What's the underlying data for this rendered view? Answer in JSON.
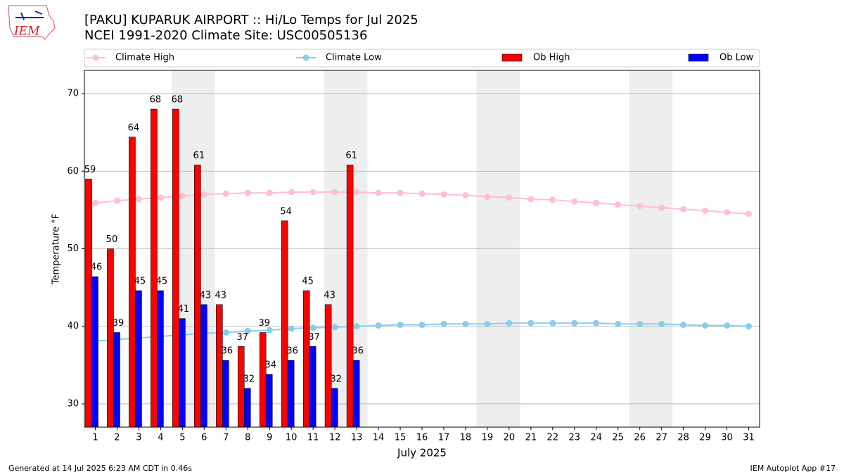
{
  "logo_text": "IEM",
  "chart_data": {
    "type": "bar",
    "title": "[PAKU] KUPARUK AIRPORT :: Hi/Lo Temps for Jul 2025",
    "subtitle": "NCEI 1991-2020 Climate Site: USC00505136",
    "y_label": "Temperature °F",
    "x_label": "July 2025",
    "footer_left": "Generated at 14 Jul 2025 6:23 AM CDT in 0.46s",
    "footer_right": "IEM Autoplot App #17",
    "categories": [
      "1",
      "2",
      "3",
      "4",
      "5",
      "6",
      "7",
      "8",
      "9",
      "10",
      "11",
      "12",
      "13",
      "14",
      "15",
      "16",
      "17",
      "18",
      "19",
      "20",
      "21",
      "22",
      "23",
      "24",
      "25",
      "26",
      "27",
      "28",
      "29",
      "30",
      "31"
    ],
    "ylim": [
      27,
      73
    ],
    "yticks": [
      30,
      40,
      50,
      60,
      70
    ],
    "grid": true,
    "series": [
      {
        "name": "Climate High",
        "type": "line",
        "color": "#ffc0cb",
        "values": [
          55.9,
          56.2,
          56.4,
          56.6,
          56.8,
          57.0,
          57.1,
          57.2,
          57.2,
          57.3,
          57.3,
          57.3,
          57.3,
          57.2,
          57.2,
          57.1,
          57.0,
          56.9,
          56.7,
          56.6,
          56.4,
          56.3,
          56.1,
          55.9,
          55.7,
          55.5,
          55.3,
          55.1,
          54.9,
          54.7,
          54.5
        ]
      },
      {
        "name": "Climate Low",
        "type": "line",
        "color": "#87ceeb",
        "values": [
          38.1,
          38.3,
          38.5,
          38.7,
          38.9,
          39.1,
          39.2,
          39.4,
          39.5,
          39.7,
          39.8,
          39.9,
          40.0,
          40.1,
          40.2,
          40.2,
          40.3,
          40.3,
          40.3,
          40.4,
          40.4,
          40.4,
          40.4,
          40.4,
          40.3,
          40.3,
          40.3,
          40.2,
          40.1,
          40.1,
          40.0
        ]
      },
      {
        "name": "Ob High",
        "type": "bar",
        "color": "#ff0000",
        "values": [
          59.0,
          50.0,
          64.4,
          68.0,
          68.0,
          60.8,
          42.8,
          37.4,
          39.2,
          53.6,
          44.6,
          42.8,
          60.8,
          null,
          null,
          null,
          null,
          null,
          null,
          null,
          null,
          null,
          null,
          null,
          null,
          null,
          null,
          null,
          null,
          null,
          null
        ],
        "value_labels": [
          "59",
          "50",
          "64",
          "68",
          "68",
          "61",
          "43",
          "37",
          "39",
          "54",
          "45",
          "43",
          "61",
          null,
          null,
          null,
          null,
          null,
          null,
          null,
          null,
          null,
          null,
          null,
          null,
          null,
          null,
          null,
          null,
          null,
          null
        ]
      },
      {
        "name": "Ob Low",
        "type": "bar",
        "color": "#0000ff",
        "values": [
          46.4,
          39.2,
          44.6,
          44.6,
          41.0,
          42.8,
          35.6,
          32.0,
          33.8,
          35.6,
          37.4,
          32.0,
          35.6,
          null,
          null,
          null,
          null,
          null,
          null,
          null,
          null,
          null,
          null,
          null,
          null,
          null,
          null,
          null,
          null,
          null,
          null
        ],
        "value_labels": [
          "46",
          "39",
          "45",
          "45",
          "41",
          "43",
          "36",
          "32",
          "34",
          "36",
          "37",
          "32",
          "36",
          null,
          null,
          null,
          null,
          null,
          null,
          null,
          null,
          null,
          null,
          null,
          null,
          null,
          null,
          null,
          null,
          null,
          null
        ]
      }
    ]
  }
}
